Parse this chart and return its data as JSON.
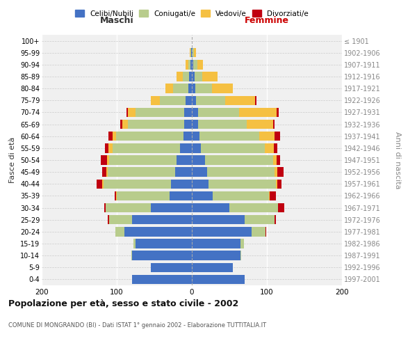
{
  "age_groups": [
    "0-4",
    "5-9",
    "10-14",
    "15-19",
    "20-24",
    "25-29",
    "30-34",
    "35-39",
    "40-44",
    "45-49",
    "50-54",
    "55-59",
    "60-64",
    "65-69",
    "70-74",
    "75-79",
    "80-84",
    "85-89",
    "90-94",
    "95-99",
    "100+"
  ],
  "birth_years": [
    "1997-2001",
    "1992-1996",
    "1987-1991",
    "1982-1986",
    "1977-1981",
    "1972-1976",
    "1967-1971",
    "1962-1966",
    "1957-1961",
    "1952-1956",
    "1947-1951",
    "1942-1946",
    "1937-1941",
    "1932-1936",
    "1927-1931",
    "1922-1926",
    "1917-1921",
    "1912-1916",
    "1907-1911",
    "1902-1906",
    "≤ 1901"
  ],
  "maschi": {
    "celibi": [
      80,
      55,
      80,
      75,
      90,
      80,
      55,
      30,
      28,
      22,
      20,
      16,
      11,
      10,
      10,
      8,
      5,
      4,
      2,
      1,
      0
    ],
    "coniugati": [
      0,
      0,
      1,
      3,
      12,
      30,
      60,
      70,
      90,
      90,
      90,
      90,
      90,
      75,
      65,
      35,
      20,
      8,
      3,
      1,
      0
    ],
    "vedovi": [
      0,
      0,
      0,
      0,
      0,
      0,
      0,
      1,
      1,
      2,
      3,
      5,
      5,
      8,
      10,
      12,
      10,
      8,
      3,
      1,
      0
    ],
    "divorziati": [
      0,
      0,
      0,
      0,
      0,
      2,
      2,
      2,
      8,
      5,
      8,
      5,
      5,
      2,
      2,
      0,
      0,
      0,
      0,
      0,
      0
    ]
  },
  "femmine": {
    "nubili": [
      70,
      55,
      65,
      65,
      80,
      70,
      50,
      28,
      22,
      20,
      18,
      12,
      10,
      8,
      8,
      6,
      5,
      4,
      2,
      1,
      0
    ],
    "coniugate": [
      0,
      0,
      1,
      4,
      18,
      40,
      65,
      75,
      90,
      90,
      90,
      85,
      80,
      65,
      55,
      38,
      22,
      10,
      5,
      2,
      0
    ],
    "vedove": [
      0,
      0,
      0,
      0,
      0,
      0,
      0,
      1,
      2,
      4,
      5,
      12,
      20,
      35,
      50,
      40,
      28,
      20,
      8,
      3,
      0
    ],
    "divorziate": [
      0,
      0,
      0,
      0,
      1,
      2,
      8,
      8,
      5,
      8,
      5,
      5,
      8,
      2,
      3,
      2,
      0,
      0,
      0,
      0,
      0
    ]
  },
  "colors": {
    "celibi_nubili": "#4472C4",
    "coniugati": "#B8CC8C",
    "vedovi": "#F5C042",
    "divorziati": "#C00010"
  },
  "xlim": 200,
  "title": "Popolazione per età, sesso e stato civile - 2002",
  "subtitle": "COMUNE DI MONGRANDO (BI) - Dati ISTAT 1° gennaio 2002 - Elaborazione TUTTITALIA.IT",
  "ylabel_left": "Fasce di età",
  "ylabel_right": "Anni di nascita",
  "xlabel_maschi": "Maschi",
  "xlabel_femmine": "Femmine",
  "legend_labels": [
    "Celibi/Nubili",
    "Coniugati/e",
    "Vedovi/e",
    "Divorziati/e"
  ],
  "background_color": "#f0f0f0"
}
